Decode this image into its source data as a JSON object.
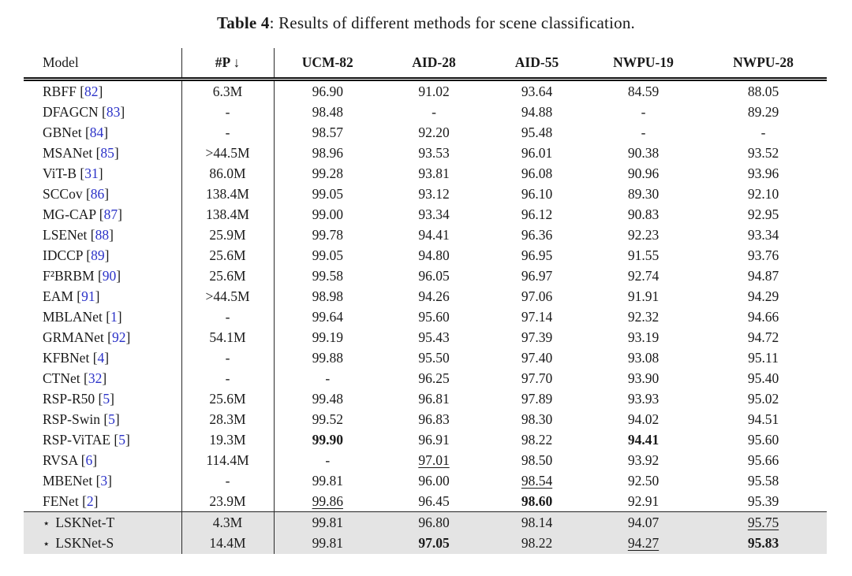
{
  "title": {
    "label": "Table 4",
    "text": ": Results of different methods for scene classification."
  },
  "table": {
    "columns": [
      "Model",
      "#P ↓",
      "UCM-82",
      "AID-28",
      "AID-55",
      "NWPU-19",
      "NWPU-28"
    ],
    "star_symbol": "⋆",
    "colors": {
      "cite": "#2b32c8",
      "highlight_bg": "#e4e4e4",
      "text": "#1a1a1a"
    },
    "rows": [
      {
        "model": "RBFF",
        "cite": "82",
        "params": "6.3M",
        "values": [
          "96.90",
          "91.02",
          "93.64",
          "84.59",
          "88.05"
        ]
      },
      {
        "model": "DFAGCN",
        "cite": "83",
        "params": "-",
        "values": [
          "98.48",
          "-",
          "94.88",
          "-",
          "89.29"
        ]
      },
      {
        "model": "GBNet",
        "cite": "84",
        "params": "-",
        "values": [
          "98.57",
          "92.20",
          "95.48",
          "-",
          "-"
        ]
      },
      {
        "model": "MSANet",
        "cite": "85",
        "params": ">44.5M",
        "values": [
          "98.96",
          "93.53",
          "96.01",
          "90.38",
          "93.52"
        ]
      },
      {
        "model": "ViT-B",
        "cite": "31",
        "params": "86.0M",
        "values": [
          "99.28",
          "93.81",
          "96.08",
          "90.96",
          "93.96"
        ]
      },
      {
        "model": "SCCov",
        "cite": "86",
        "params": "138.4M",
        "values": [
          "99.05",
          "93.12",
          "96.10",
          "89.30",
          "92.10"
        ]
      },
      {
        "model": "MG-CAP",
        "cite": "87",
        "params": "138.4M",
        "values": [
          "99.00",
          "93.34",
          "96.12",
          "90.83",
          "92.95"
        ]
      },
      {
        "model": "LSENet",
        "cite": "88",
        "params": "25.9M",
        "values": [
          "99.78",
          "94.41",
          "96.36",
          "92.23",
          "93.34"
        ]
      },
      {
        "model": "IDCCP",
        "cite": "89",
        "params": "25.6M",
        "values": [
          "99.05",
          "94.80",
          "96.95",
          "91.55",
          "93.76"
        ]
      },
      {
        "model": "F²BRBM",
        "cite": "90",
        "params": "25.6M",
        "values": [
          "99.58",
          "96.05",
          "96.97",
          "92.74",
          "94.87"
        ]
      },
      {
        "model": "EAM",
        "cite": "91",
        "params": ">44.5M",
        "values": [
          "98.98",
          "94.26",
          "97.06",
          "91.91",
          "94.29"
        ]
      },
      {
        "model": "MBLANet",
        "cite": "1",
        "params": "-",
        "values": [
          "99.64",
          "95.60",
          "97.14",
          "92.32",
          "94.66"
        ]
      },
      {
        "model": "GRMANet",
        "cite": "92",
        "params": "54.1M",
        "values": [
          "99.19",
          "95.43",
          "97.39",
          "93.19",
          "94.72"
        ]
      },
      {
        "model": "KFBNet",
        "cite": "4",
        "params": "-",
        "values": [
          "99.88",
          "95.50",
          "97.40",
          "93.08",
          "95.11"
        ]
      },
      {
        "model": "CTNet",
        "cite": "32",
        "params": "-",
        "values": [
          "-",
          "96.25",
          "97.70",
          "93.90",
          "95.40"
        ]
      },
      {
        "model": "RSP-R50",
        "cite": "5",
        "params": "25.6M",
        "values": [
          "99.48",
          "96.81",
          "97.89",
          "93.93",
          "95.02"
        ]
      },
      {
        "model": "RSP-Swin",
        "cite": "5",
        "params": "28.3M",
        "values": [
          "99.52",
          "96.83",
          "98.30",
          "94.02",
          "94.51"
        ]
      },
      {
        "model": "RSP-ViTAE",
        "cite": "5",
        "params": "19.3M",
        "values": [
          "99.90",
          "96.91",
          "98.22",
          "94.41",
          "95.60"
        ],
        "bold": [
          0,
          3
        ]
      },
      {
        "model": "RVSA",
        "cite": "6",
        "params": "114.4M",
        "values": [
          "-",
          "97.01",
          "98.50",
          "93.92",
          "95.66"
        ],
        "underline": [
          1
        ]
      },
      {
        "model": "MBENet",
        "cite": "3",
        "params": "-",
        "values": [
          "99.81",
          "96.00",
          "98.54",
          "92.50",
          "95.58"
        ],
        "underline": [
          2
        ]
      },
      {
        "model": "FENet",
        "cite": "2",
        "params": "23.9M",
        "values": [
          "99.86",
          "96.45",
          "98.60",
          "92.91",
          "95.39"
        ],
        "underline": [
          0
        ],
        "bold": [
          2
        ]
      },
      {
        "model": "LSKNet-T",
        "star": true,
        "params": "4.3M",
        "values": [
          "99.81",
          "96.80",
          "98.14",
          "94.07",
          "95.75"
        ],
        "underline": [
          4
        ],
        "highlight": true
      },
      {
        "model": "LSKNet-S",
        "star": true,
        "params": "14.4M",
        "values": [
          "99.81",
          "97.05",
          "98.22",
          "94.27",
          "95.83"
        ],
        "bold": [
          1,
          4
        ],
        "underline": [
          3
        ],
        "highlight": true
      }
    ]
  }
}
